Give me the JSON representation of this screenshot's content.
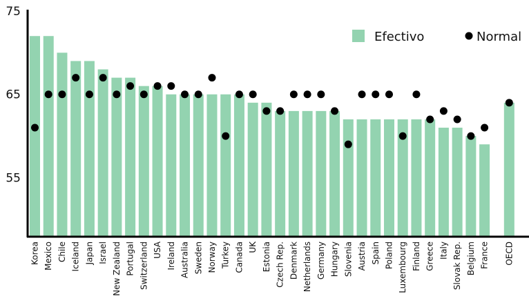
{
  "chart_data": {
    "type": "bar",
    "categories": [
      "Korea",
      "Mexico",
      "Chile",
      "Iceland",
      "Japan",
      "Israel",
      "New Zealand",
      "Portugal",
      "Switzerland",
      "USA",
      "Ireland",
      "Australia",
      "Sweden",
      "Norway",
      "Turkey",
      "Canada",
      "UK",
      "Estonia",
      "Czech Rep.",
      "Denmark",
      "Netherlands",
      "Germany",
      "Hungary",
      "Slovenia",
      "Austria",
      "Spain",
      "Poland",
      "Luxembourg",
      "Finland",
      "Greece",
      "Italy",
      "Slovak Rep.",
      "Belgium",
      "France",
      "OECD"
    ],
    "series": [
      {
        "name": "Efectivo",
        "kind": "bar",
        "color": "#93d3b0",
        "values": [
          72,
          72,
          70,
          69,
          69,
          68,
          67,
          67,
          66,
          66,
          65,
          65,
          65,
          65,
          65,
          65,
          64,
          64,
          63,
          63,
          63,
          63,
          63,
          62,
          62,
          62,
          62,
          62,
          62,
          62,
          61,
          61,
          60,
          59,
          64
        ]
      },
      {
        "name": "Normal",
        "kind": "dot",
        "color": "#000000",
        "values": [
          61,
          65,
          65,
          67,
          65,
          67,
          65,
          66,
          65,
          66,
          66,
          65,
          65,
          67,
          60,
          65,
          65,
          63,
          63,
          65,
          65,
          65,
          63,
          59,
          65,
          65,
          65,
          60,
          65,
          62,
          63,
          62,
          60,
          61,
          64
        ]
      }
    ],
    "gap_before": "OECD",
    "yticks": [
      55,
      65,
      75
    ],
    "ylim": [
      48,
      75
    ],
    "grid": false,
    "legend_position": "top-right"
  }
}
